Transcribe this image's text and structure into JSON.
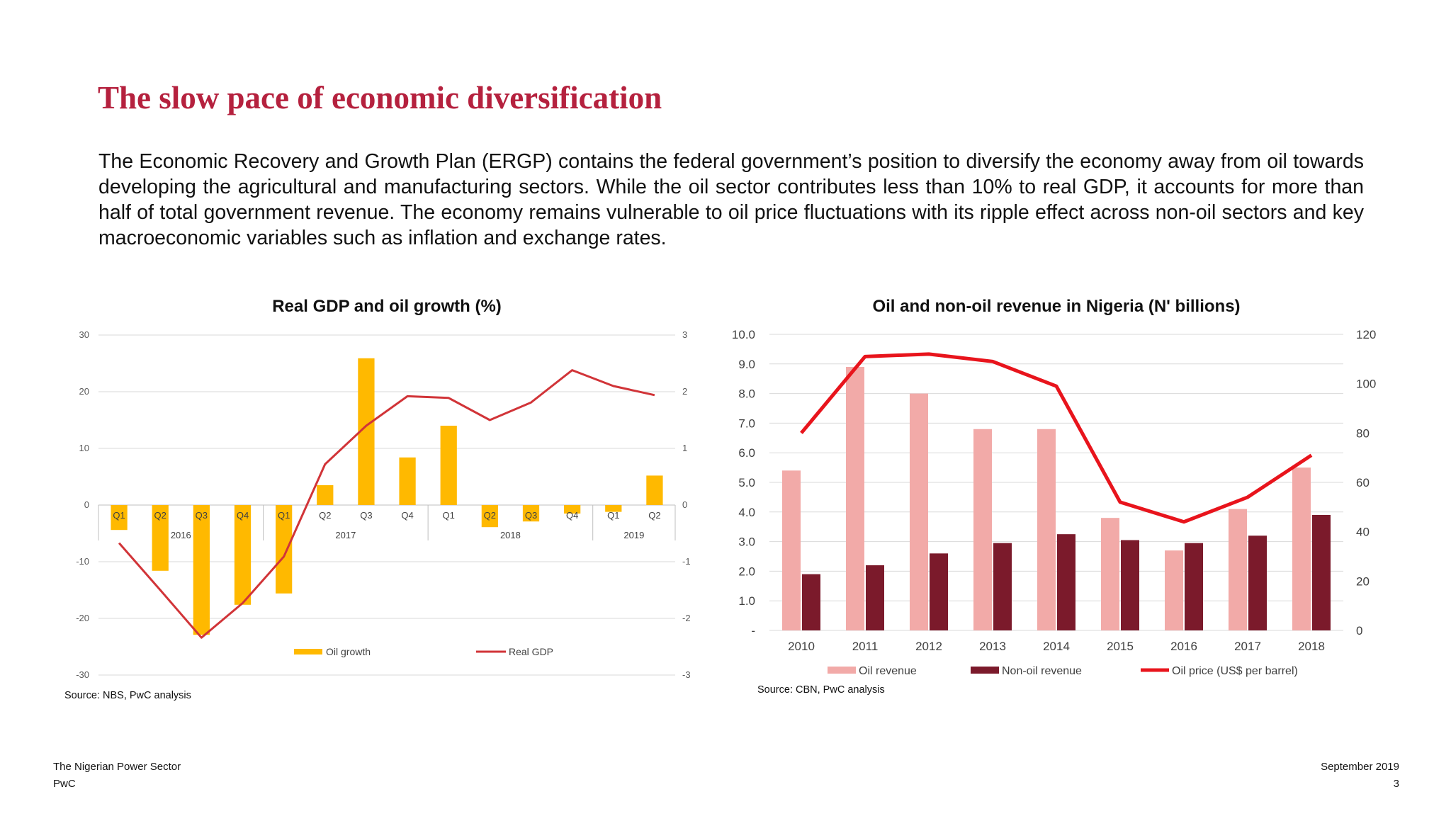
{
  "title": "The slow pace of economic diversification",
  "intro": "The Economic Recovery and Growth Plan (ERGP) contains the federal government’s position to diversify the economy away from oil towards developing the agricultural and manufacturing sectors. While the oil sector contributes less than 10% to real GDP, it accounts for more than half of total government revenue. The economy remains vulnerable to oil price fluctuations with its ripple effect across non-oil sectors and key macroeconomic variables such as inflation and exchange rates.",
  "footer": {
    "left_line1": "The Nigerian Power Sector",
    "left_line2": "PwC",
    "right_line1": "September 2019",
    "right_line2": "3"
  },
  "chart_data": [
    {
      "type": "bar",
      "title": "Real GDP and oil growth (%)",
      "source": "Source: NBS, PwC analysis",
      "categories": [
        "Q1",
        "Q2",
        "Q3",
        "Q4",
        "Q1",
        "Q2",
        "Q3",
        "Q4",
        "Q1",
        "Q2",
        "Q3",
        "Q4",
        "Q1",
        "Q2"
      ],
      "groups": [
        {
          "label": "2016",
          "count": 4
        },
        {
          "label": "2017",
          "count": 4
        },
        {
          "label": "2018",
          "count": 4
        },
        {
          "label": "2019",
          "count": 2
        }
      ],
      "y_left": {
        "range": [
          -30,
          30
        ],
        "ticks": [
          "-30",
          "-20",
          "-10",
          "0",
          "10",
          "20",
          "30"
        ]
      },
      "y_right": {
        "range": [
          -3,
          3
        ],
        "ticks": [
          "-3",
          "-2",
          "-1",
          "0",
          "1",
          "2",
          "3"
        ]
      },
      "grid": true,
      "legend_position": "bottom",
      "series": [
        {
          "name": "Oil growth",
          "type": "bar",
          "axis": "left",
          "color": "#ffb900",
          "values": [
            -4.4,
            -11.6,
            -22.9,
            -17.6,
            -15.6,
            3.5,
            25.9,
            8.4,
            14.0,
            -3.9,
            -2.9,
            -1.5,
            -1.2,
            5.2
          ]
        },
        {
          "name": "Real GDP",
          "type": "line",
          "axis": "right",
          "color": "#d13438",
          "values": [
            -0.67,
            -1.5,
            -2.34,
            -1.73,
            -0.91,
            0.72,
            1.4,
            1.92,
            1.89,
            1.5,
            1.81,
            2.38,
            2.1,
            1.94
          ]
        }
      ]
    },
    {
      "type": "bar",
      "title": "Oil and non-oil revenue in Nigeria (N' billions)",
      "source": "Source: CBN, PwC analysis",
      "categories": [
        "2010",
        "2011",
        "2012",
        "2013",
        "2014",
        "2015",
        "2016",
        "2017",
        "2018"
      ],
      "y_left": {
        "range": [
          0,
          10
        ],
        "ticks": [
          "-",
          "1.0",
          "2.0",
          "3.0",
          "4.0",
          "5.0",
          "6.0",
          "7.0",
          "8.0",
          "9.0",
          "10.0"
        ]
      },
      "y_right": {
        "range": [
          0,
          120
        ],
        "ticks": [
          "0",
          "20",
          "40",
          "60",
          "80",
          "100",
          "120"
        ]
      },
      "grid": true,
      "legend_position": "bottom",
      "series": [
        {
          "name": "Oil revenue",
          "type": "bar",
          "axis": "left",
          "color": "#f2aaa8",
          "values": [
            5.4,
            8.9,
            8.0,
            6.8,
            6.8,
            3.8,
            2.7,
            4.1,
            5.5
          ]
        },
        {
          "name": "Non-oil revenue",
          "type": "bar",
          "axis": "left",
          "color": "#7b1a2b",
          "values": [
            1.9,
            2.2,
            2.6,
            2.95,
            3.25,
            3.05,
            2.95,
            3.2,
            3.9
          ]
        },
        {
          "name": "Oil price (US$ per barrel)",
          "type": "line",
          "axis": "right",
          "color": "#e8141c",
          "values": [
            80,
            111,
            112,
            109,
            99,
            52,
            44,
            54,
            71
          ]
        }
      ]
    }
  ]
}
